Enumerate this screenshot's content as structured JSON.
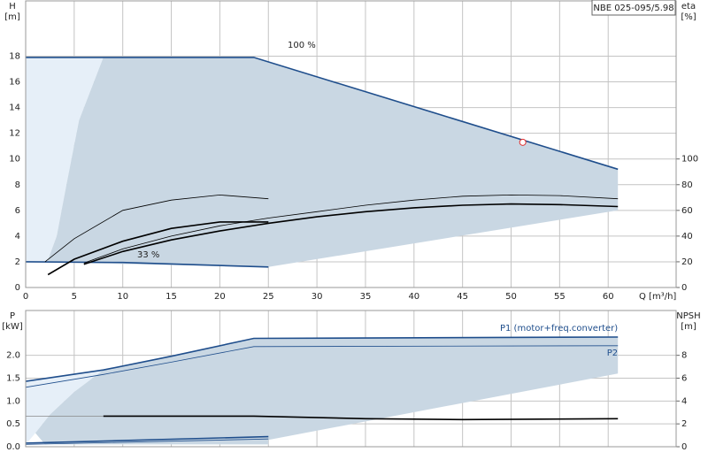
{
  "chart_data": [
    {
      "type": "line",
      "title": "NBE 025-095/5.98",
      "xlabel": "Q [m³/h]",
      "ylabel": [
        "H",
        "[m]"
      ],
      "y2label": [
        "eta",
        "[%]"
      ],
      "xlim": [
        0,
        67
      ],
      "xticks": [
        0,
        5,
        10,
        15,
        20,
        25,
        30,
        35,
        40,
        45,
        50,
        55,
        60
      ],
      "xtick_labels": true,
      "ylim": [
        0,
        22.3
      ],
      "yticks": [
        0,
        2,
        4,
        6,
        8,
        10,
        12,
        14,
        16,
        18
      ],
      "y2lim": [
        0,
        223
      ],
      "y2ticks": [
        0,
        20,
        40,
        60,
        80,
        100
      ],
      "grid": true,
      "annotations": [
        "100 %",
        "33 %"
      ],
      "series": [
        {
          "kind": "area",
          "color": "#e6eff8",
          "x": [
            0,
            8,
            5.5,
            4.2,
            3.2,
            2.2,
            0
          ],
          "values": [
            17.9,
            17.9,
            13,
            8,
            4,
            1.95,
            2.0
          ]
        },
        {
          "kind": "area",
          "color": "#c9d7e3",
          "x": [
            8,
            23.5,
            61,
            61,
            25,
            2.2,
            3.2,
            4.2,
            5.5,
            8
          ],
          "values": [
            17.9,
            17.9,
            9.2,
            6.0,
            1.6,
            1.95,
            4,
            8,
            13,
            17.9
          ]
        },
        {
          "kind": "line",
          "color": "#1f4e8c",
          "style": "thick",
          "x": [
            0,
            23.5,
            61
          ],
          "values": [
            17.9,
            17.9,
            9.2
          ]
        },
        {
          "kind": "line",
          "color": "#1f4e8c",
          "style": "thick",
          "x": [
            0,
            10,
            25
          ],
          "values": [
            2.0,
            1.95,
            1.6
          ]
        },
        {
          "kind": "line",
          "axis": "y2",
          "color": "#000000",
          "style": "thick",
          "x": [
            6,
            10,
            15,
            20,
            25,
            30,
            35,
            40,
            45,
            50,
            55,
            61
          ],
          "values": [
            18,
            28,
            37,
            44,
            50,
            55,
            59,
            62,
            64,
            65,
            64.5,
            63
          ]
        },
        {
          "kind": "line",
          "axis": "y2",
          "color": "#000000",
          "style": "thin",
          "x": [
            6,
            10,
            15,
            20,
            25,
            30,
            35,
            40,
            45,
            50,
            55,
            61
          ],
          "values": [
            19,
            30,
            40,
            48,
            54,
            59,
            64,
            68,
            71,
            72,
            71.5,
            69
          ]
        },
        {
          "kind": "line",
          "axis": "y2",
          "color": "#000000",
          "style": "thick",
          "x": [
            2.3,
            5,
            10,
            15,
            20,
            25
          ],
          "values": [
            10,
            22,
            36,
            46,
            51,
            51
          ]
        },
        {
          "kind": "line",
          "axis": "y2",
          "color": "#000000",
          "style": "thin",
          "x": [
            2,
            5,
            10,
            15,
            20,
            25
          ],
          "values": [
            20,
            38,
            60,
            68,
            72,
            69
          ]
        }
      ],
      "points": [
        {
          "x": 51.2,
          "y": 11.3,
          "color": "#e03030"
        }
      ]
    },
    {
      "type": "line",
      "ylabel": [
        "P",
        "[kW]"
      ],
      "y2label": [
        "NPSH",
        "[m]"
      ],
      "xlim": [
        0,
        67
      ],
      "xticks": [
        0,
        5,
        10,
        15,
        20,
        25,
        30,
        35,
        40,
        45,
        50,
        55,
        60
      ],
      "xtick_labels": false,
      "ylim": [
        0,
        2.98
      ],
      "yticks": [
        {
          "value": 0,
          "label": "0.0"
        },
        0.5,
        {
          "value": 1,
          "label": "1.0"
        },
        1.5,
        {
          "value": 2,
          "label": "2.0"
        }
      ],
      "y2lim": [
        0,
        11.92
      ],
      "y2ticks": [
        0,
        2,
        4,
        6,
        8
      ],
      "grid": true,
      "series": [
        {
          "kind": "area",
          "color": "#e6eff8",
          "x": [
            0,
            8,
            5,
            2.5,
            1,
            0
          ],
          "values": [
            1.43,
            1.68,
            1.2,
            0.7,
            0.3,
            0.05
          ]
        },
        {
          "kind": "area",
          "color": "#c9d7e3",
          "x": [
            8,
            23.5,
            61,
            61,
            25,
            25,
            2,
            1,
            2.5,
            5,
            8
          ],
          "values": [
            1.68,
            2.37,
            2.4,
            1.6,
            0.15,
            0.05,
            0.05,
            0.3,
            0.7,
            1.2,
            1.68
          ]
        },
        {
          "kind": "line",
          "name": "P1 (motor+freq.converter)",
          "color": "#1f4e8c",
          "style": "thick",
          "x": [
            0,
            8,
            15,
            23.5,
            61
          ],
          "values": [
            1.43,
            1.68,
            1.98,
            2.37,
            2.4
          ]
        },
        {
          "kind": "line",
          "name": "P2",
          "color": "#1f4e8c",
          "style": "thin",
          "x": [
            0,
            8,
            15,
            23.5,
            61
          ],
          "values": [
            1.3,
            1.58,
            1.85,
            2.19,
            2.21
          ]
        },
        {
          "kind": "line",
          "color": "#1f4e8c",
          "style": "thick",
          "x": [
            0,
            25
          ],
          "values": [
            0.08,
            0.22
          ]
        },
        {
          "kind": "line",
          "color": "#1f4e8c",
          "style": "thin",
          "x": [
            0,
            25
          ],
          "values": [
            0.05,
            0.17
          ]
        },
        {
          "kind": "line",
          "axis": "y2",
          "color": "#888888",
          "style": "thin",
          "x": [
            0,
            8
          ],
          "values": [
            2.68,
            2.68
          ]
        },
        {
          "kind": "line",
          "axis": "y2",
          "color": "#000000",
          "style": "thick",
          "x": [
            8,
            23.5,
            35,
            45,
            61
          ],
          "values": [
            2.68,
            2.68,
            2.45,
            2.38,
            2.45
          ]
        }
      ]
    }
  ]
}
